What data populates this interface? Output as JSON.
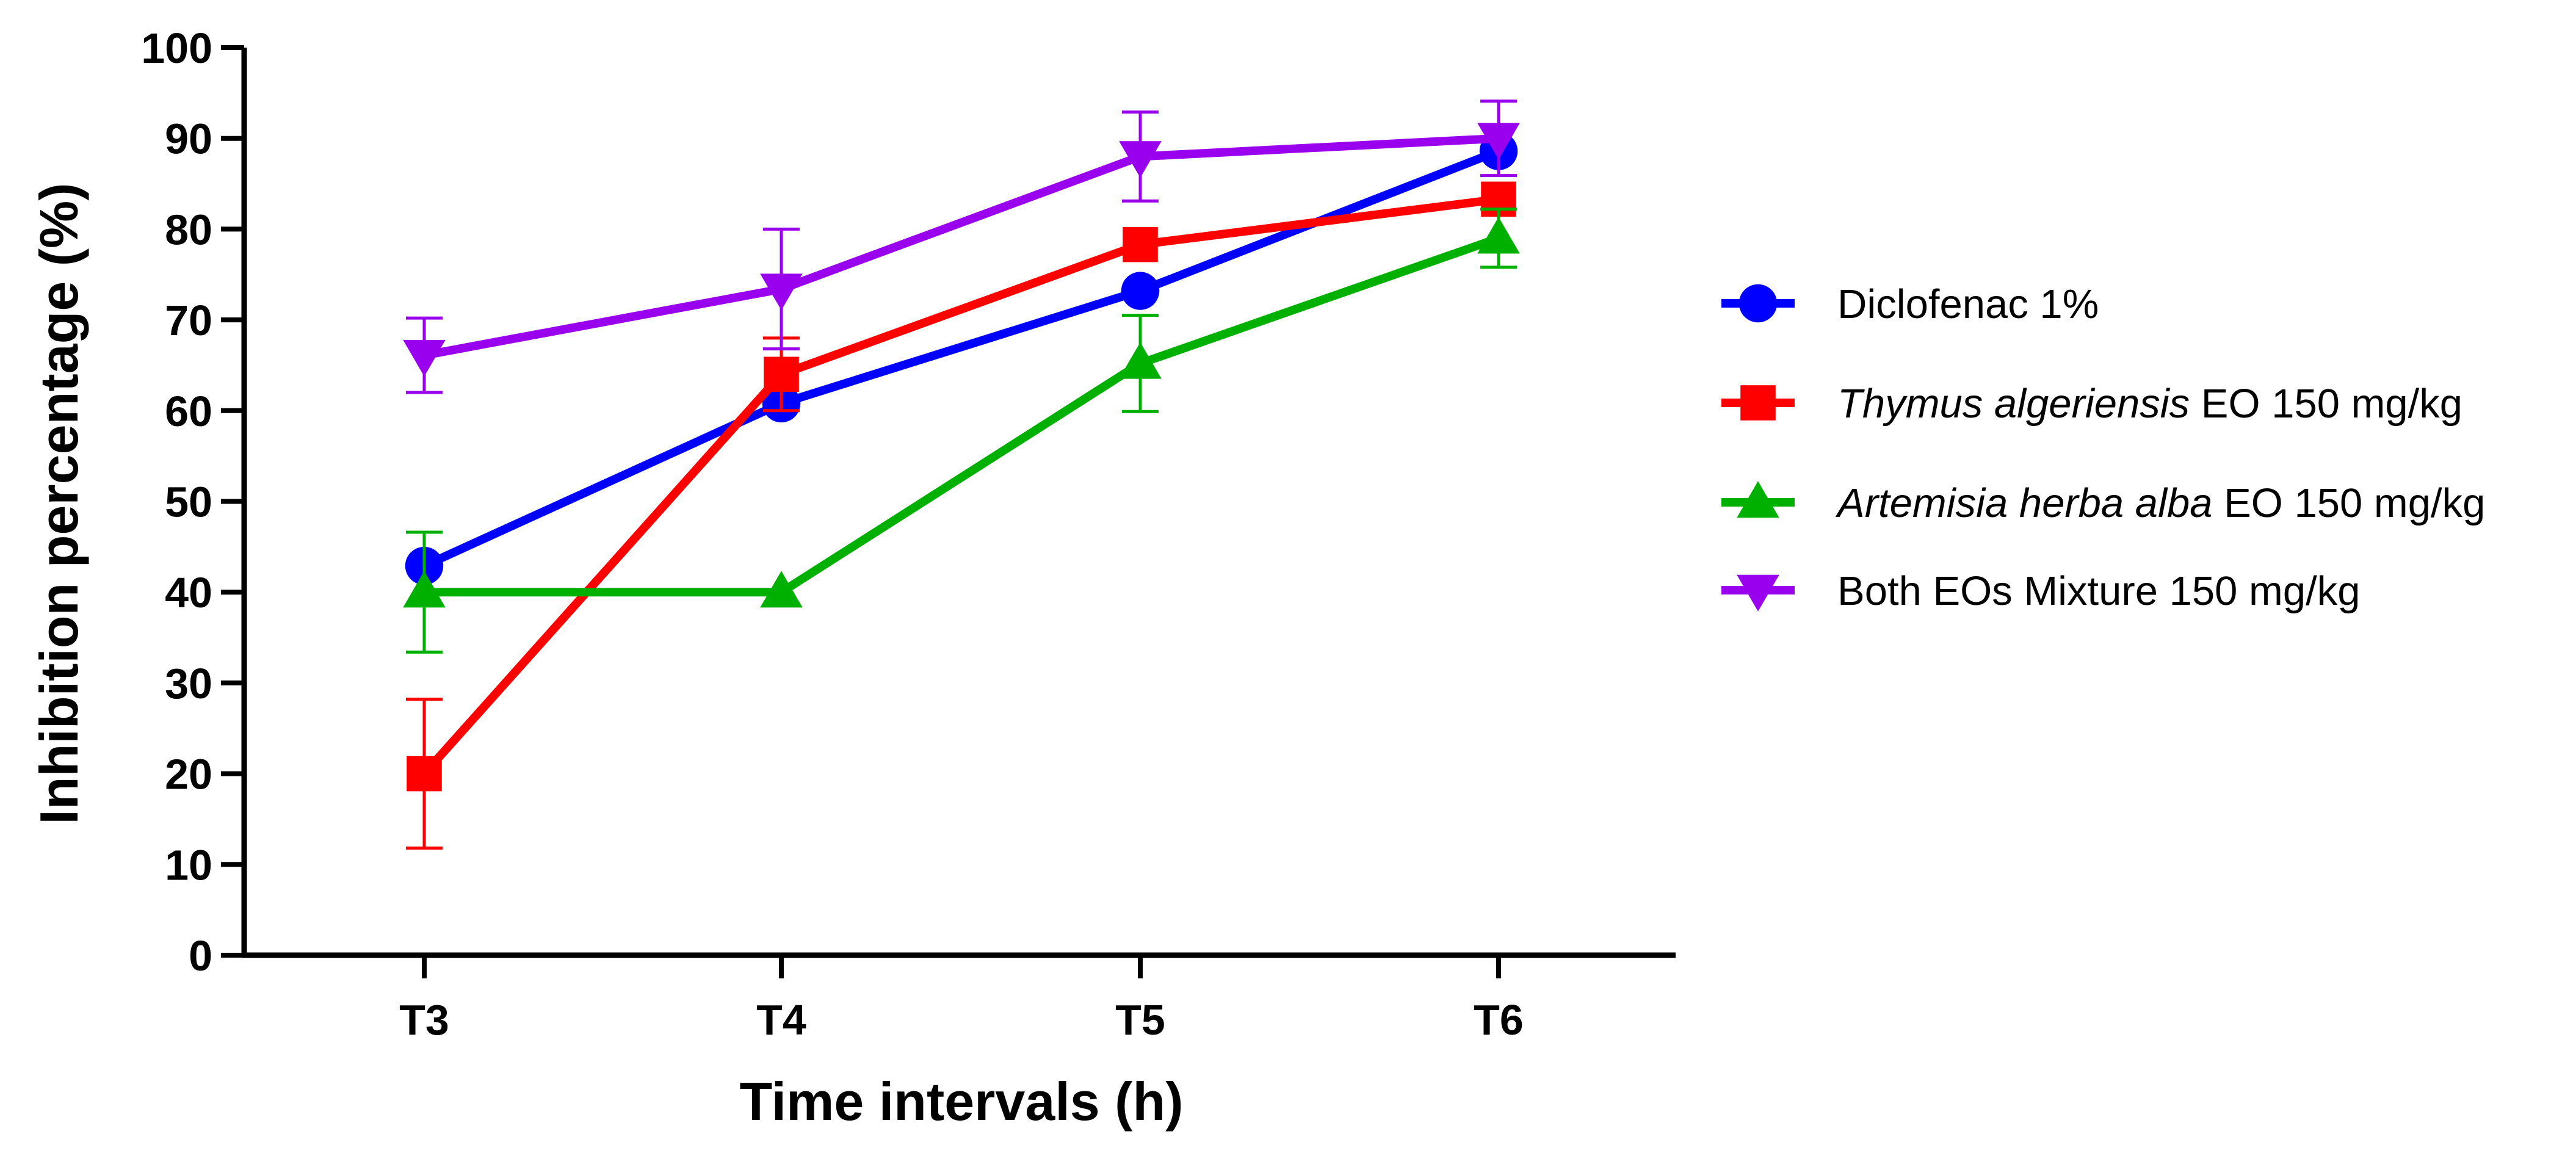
{
  "chart_data": {
    "type": "line",
    "xlabel": "Time intervals (h)",
    "ylabel": "Inhibition percentage (%)",
    "categories": [
      "T3",
      "T4",
      "T5",
      "T6"
    ],
    "ylim": [
      0,
      100
    ],
    "yticks": [
      0,
      10,
      20,
      30,
      40,
      50,
      60,
      70,
      80,
      90,
      100
    ],
    "grid": false,
    "legend_position": "right",
    "series": [
      {
        "name": "Diclofenac 1%",
        "name_italic": "",
        "name_rest": "Diclofenac 1%",
        "color": "#0000ff",
        "marker": "circle",
        "values": [
          42.9,
          60.8,
          73.2,
          88.6
        ],
        "errors": [
          0,
          0,
          0,
          0
        ]
      },
      {
        "name": "Thymus algeriensis EO 150 mg/kg",
        "name_italic": "Thymus algeriensis",
        "name_rest": " EO 150 mg/kg",
        "color": "#ff0000",
        "marker": "square",
        "values": [
          20.0,
          64.0,
          78.3,
          83.3
        ],
        "errors": [
          8.2,
          4.0,
          0,
          0
        ]
      },
      {
        "name": "Artemisia herba alba EO 150 mg/kg",
        "name_italic": "Artemisia herba alba",
        "name_rest": " EO 150 mg/kg",
        "color": "#00b000",
        "marker": "triangle-up",
        "values": [
          40.0,
          40.0,
          65.2,
          79.0
        ],
        "errors": [
          6.6,
          0,
          5.3,
          3.2
        ]
      },
      {
        "name": "Both EOs Mixture 150 mg/kg",
        "name_italic": "",
        "name_rest": "Both EOs Mixture 150 mg/kg",
        "color": "#9900ee",
        "marker": "triangle-down",
        "values": [
          66.1,
          73.4,
          88.0,
          90.0
        ],
        "errors": [
          4.1,
          6.6,
          4.9,
          4.1
        ]
      }
    ]
  }
}
